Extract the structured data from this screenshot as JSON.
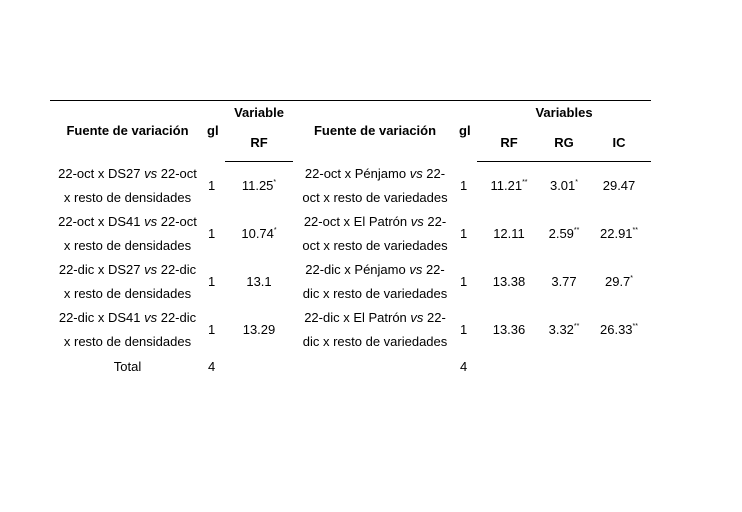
{
  "headers": {
    "fuente": "Fuente de variación",
    "gl": "gl",
    "variable": "Variable",
    "rf": "RF",
    "fuente2": "Fuente de variación",
    "gl2": "gl",
    "variables": "Variables",
    "rf2": "RF",
    "rg": "RG",
    "ic": "IC"
  },
  "rows": [
    {
      "left_a": "22-oct x DS27 ",
      "left_vs": "vs",
      "left_b": " 22-oct",
      "left_c": "x resto de densidades",
      "gl": "1",
      "rf": "11.25",
      "rf_sup": "*",
      "right_a": "22-oct x Pénjamo ",
      "right_vs": "vs",
      "right_b": " 22-",
      "right_c": "oct x resto de variedades",
      "gl2": "1",
      "rf2": "11.21",
      "rf2_sup": "**",
      "rg": "3.01",
      "rg_sup": "*",
      "ic": "29.47",
      "ic_sup": ""
    },
    {
      "left_a": "22-oct x DS41 ",
      "left_vs": "vs",
      "left_b": " 22-oct",
      "left_c": "x resto de densidades",
      "gl": "1",
      "rf": "10.74",
      "rf_sup": "*",
      "right_a": "22-oct x El Patrón ",
      "right_vs": "vs",
      "right_b": " 22-",
      "right_c": "oct x resto de variedades",
      "gl2": "1",
      "rf2": "12.11",
      "rf2_sup": "",
      "rg": "2.59",
      "rg_sup": "**",
      "ic": "22.91",
      "ic_sup": "**"
    },
    {
      "left_a": "22-dic x DS27 ",
      "left_vs": "vs",
      "left_b": " 22-dic",
      "left_c": "x resto de densidades",
      "gl": "1",
      "rf": "13.1",
      "rf_sup": "",
      "right_a": "22-dic x Pénjamo ",
      "right_vs": "vs",
      "right_b": " 22-",
      "right_c": "dic x resto de variedades",
      "gl2": "1",
      "rf2": "13.38",
      "rf2_sup": "",
      "rg": "3.77",
      "rg_sup": "",
      "ic": "29.7",
      "ic_sup": "*"
    },
    {
      "left_a": "22-dic x DS41 ",
      "left_vs": "vs",
      "left_b": " 22-dic",
      "left_c": "x resto de densidades",
      "gl": "1",
      "rf": "13.29",
      "rf_sup": "",
      "right_a": "22-dic x El Patrón ",
      "right_vs": "vs",
      "right_b": " 22-",
      "right_c": "dic x resto de variedades",
      "gl2": "1",
      "rf2": "13.36",
      "rf2_sup": "",
      "rg": "3.32",
      "rg_sup": "**",
      "ic": "26.33",
      "ic_sup": "**"
    }
  ],
  "total": {
    "label": "Total",
    "gl": "4",
    "gl2": "4"
  }
}
